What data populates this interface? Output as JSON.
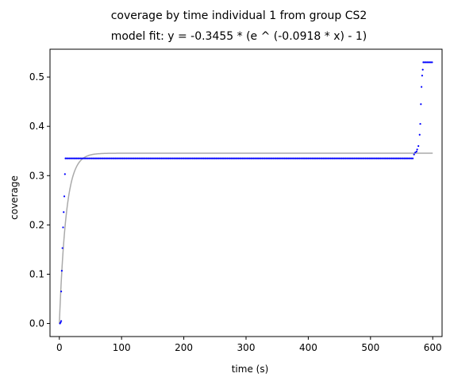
{
  "chart_data": {
    "type": "scatter",
    "title": "coverage by time individual 1 from group CS2",
    "subtitle": "model fit: y = -0.3455 * (e ^ (-0.0918 * x) - 1)",
    "xlabel": "time (s)",
    "ylabel": "coverage",
    "xlim": [
      -15,
      615
    ],
    "ylim": [
      -0.0265,
      0.5565
    ],
    "x_ticks": [
      0,
      100,
      200,
      300,
      400,
      500,
      600
    ],
    "y_ticks": [
      0.0,
      0.1,
      0.2,
      0.3,
      0.4,
      0.5
    ],
    "x_tick_labels": [
      "0",
      "100",
      "200",
      "300",
      "400",
      "500",
      "600"
    ],
    "y_tick_labels": [
      "0.0",
      "0.1",
      "0.2",
      "0.3",
      "0.4",
      "0.5"
    ],
    "grid": false,
    "series": [
      {
        "kind": "scatter",
        "color": "#0000ff",
        "points": [
          [
            1,
            0.0
          ],
          [
            2,
            0.002
          ],
          [
            3,
            0.005
          ],
          [
            3,
            0.065
          ],
          [
            4,
            0.107
          ],
          [
            5,
            0.153
          ],
          [
            6,
            0.195
          ],
          [
            7,
            0.226
          ],
          [
            8,
            0.258
          ],
          [
            9,
            0.303
          ],
          [
            10,
            0.335
          ],
          [
            570,
            0.343
          ],
          [
            572,
            0.347
          ],
          [
            574,
            0.349
          ],
          [
            575,
            0.353
          ],
          [
            577,
            0.36
          ],
          [
            579,
            0.383
          ],
          [
            580,
            0.405
          ],
          [
            581,
            0.445
          ],
          [
            582,
            0.48
          ],
          [
            583,
            0.503
          ],
          [
            584,
            0.515
          ],
          [
            585,
            0.53
          ]
        ],
        "plateau_segments": [
          {
            "x_start": 10,
            "x_end": 568,
            "step": 2,
            "y": 0.335
          },
          {
            "x_start": 585,
            "x_end": 599,
            "step": 2,
            "y": 0.53
          }
        ]
      },
      {
        "kind": "line",
        "color": "#aaaaaa",
        "model": {
          "a": 0.3455,
          "k": 0.0918,
          "x_start": 0,
          "x_end": 600
        }
      }
    ]
  }
}
